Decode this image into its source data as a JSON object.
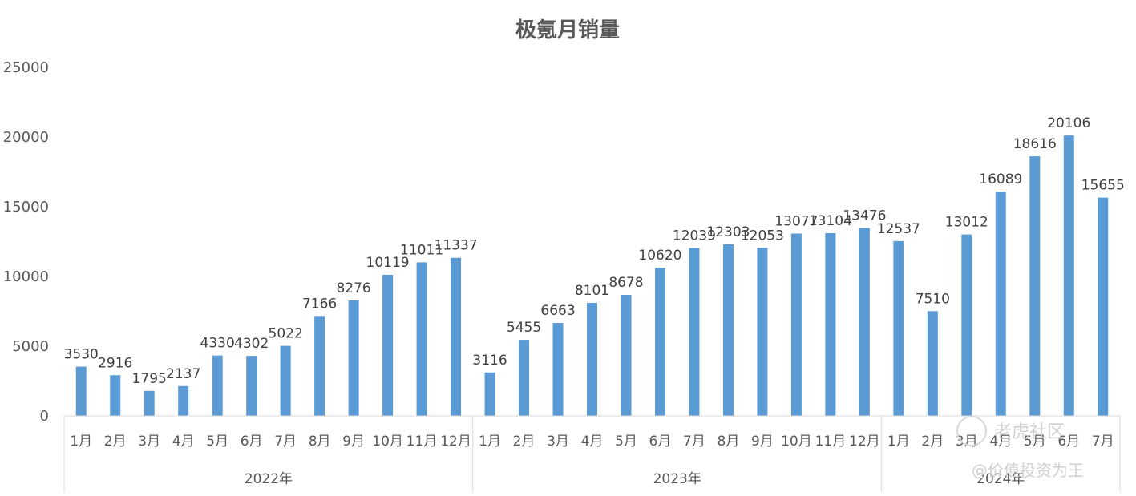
{
  "chart_data": {
    "type": "bar",
    "title": "极氪月销量",
    "xlabel": "",
    "ylabel": "",
    "ylim": [
      0,
      25000
    ],
    "yticks": [
      0,
      5000,
      10000,
      15000,
      20000,
      25000
    ],
    "grid": false,
    "legend": "none",
    "bar_color": "#5b9bd5",
    "groups": [
      {
        "label": "2022年",
        "count": 12
      },
      {
        "label": "2023年",
        "count": 12
      },
      {
        "label": "2024年",
        "count": 7
      }
    ],
    "categories": [
      "1月",
      "2月",
      "3月",
      "4月",
      "5月",
      "6月",
      "7月",
      "8月",
      "9月",
      "10月",
      "11月",
      "12月",
      "1月",
      "2月",
      "3月",
      "4月",
      "5月",
      "6月",
      "7月",
      "8月",
      "9月",
      "10月",
      "11月",
      "12月",
      "1月",
      "2月",
      "3月",
      "4月",
      "5月",
      "6月",
      "7月"
    ],
    "values": [
      3530,
      2916,
      1795,
      2137,
      4330,
      4302,
      5022,
      7166,
      8276,
      10119,
      11011,
      11337,
      3116,
      5455,
      6663,
      8101,
      8678,
      10620,
      12039,
      12303,
      12053,
      13077,
      13104,
      13476,
      12537,
      7510,
      13012,
      16089,
      18616,
      20106,
      15655
    ]
  },
  "watermark": {
    "line1": "老虎社区",
    "line2": "@价值投资为王"
  }
}
